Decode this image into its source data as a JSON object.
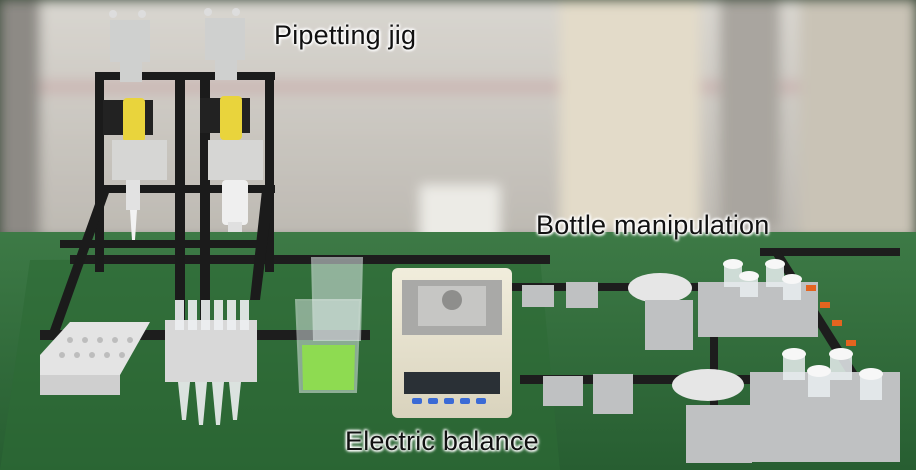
{
  "labels": {
    "pipetting_jig": "Pipetting jig",
    "bottle_manipulation": "Bottle manipulation",
    "electric_balance": "Electric balance"
  },
  "colors": {
    "mat_green": "#2f6b3a",
    "frame_black": "#1c1c1c",
    "pipette_yellow": "#e9d43c",
    "green_liquid": "#8fe04a",
    "fixture_gray": "#b9bcbd"
  }
}
